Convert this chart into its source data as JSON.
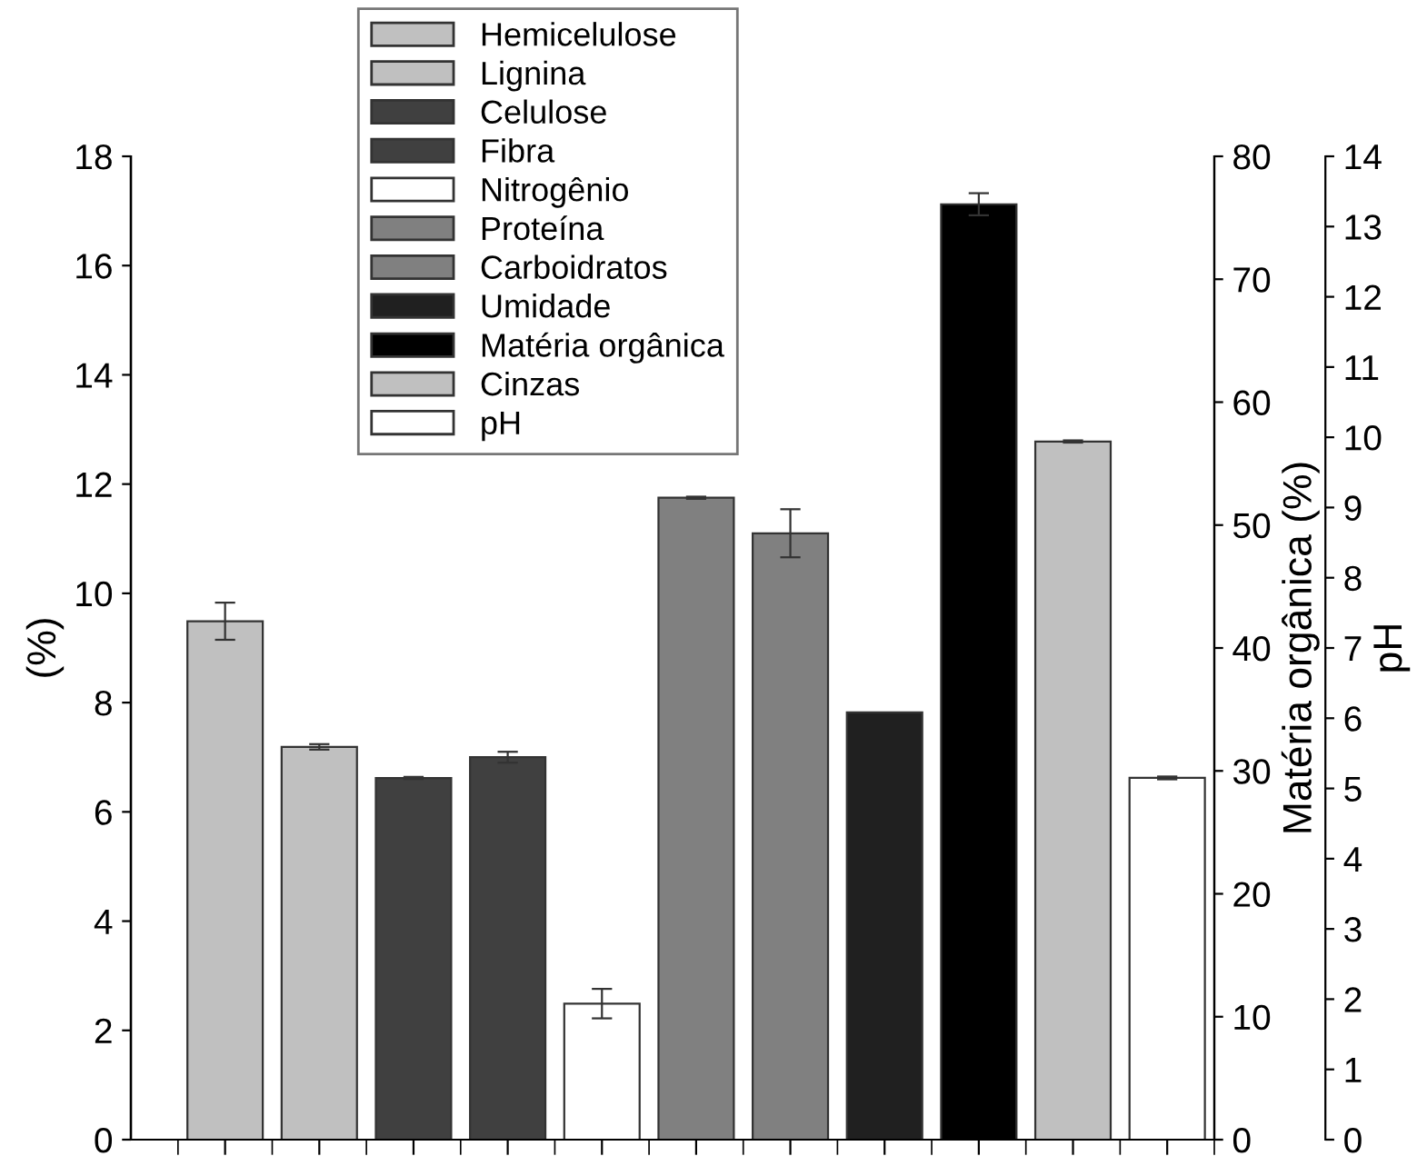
{
  "chart_data": {
    "type": "bar",
    "ylabel": "(%)",
    "y2label": "Matéria orgânica (%)",
    "y3label": "pH",
    "categories": [
      null,
      null,
      null,
      null,
      null,
      null,
      null,
      null,
      null,
      null,
      null
    ],
    "ylim": [
      0,
      18
    ],
    "yticks": [
      0,
      2,
      4,
      6,
      8,
      10,
      12,
      14,
      16,
      18
    ],
    "y2lim": [
      0,
      80
    ],
    "y2ticks": [
      0,
      10,
      20,
      30,
      40,
      50,
      60,
      70,
      80
    ],
    "y3lim": [
      0,
      14
    ],
    "y3ticks": [
      0,
      1,
      2,
      3,
      4,
      5,
      6,
      7,
      8,
      9,
      10,
      11,
      12,
      13,
      14
    ],
    "legend": "top left",
    "grid": false,
    "series": [
      {
        "name": "Hemicelulose",
        "color": "#c0c0c0",
        "values": [
          9.49,
          null,
          null,
          null,
          null,
          null,
          null,
          null,
          null,
          null,
          null
        ],
        "errors": [
          0.34,
          null,
          null,
          null,
          null,
          null,
          null,
          null,
          null,
          null,
          null
        ]
      },
      {
        "name": "Lignina",
        "color": "#c0c0c0",
        "values": [
          null,
          7.19,
          null,
          null,
          null,
          null,
          null,
          null,
          null,
          null,
          null
        ],
        "errors": [
          null,
          0.05,
          null,
          null,
          null,
          null,
          null,
          null,
          null,
          null,
          null
        ]
      },
      {
        "name": "Celulose",
        "color": "#404040",
        "values": [
          null,
          null,
          6.62,
          null,
          null,
          null,
          null,
          null,
          null,
          null,
          null
        ],
        "errors": [
          null,
          null,
          0.02,
          null,
          null,
          null,
          null,
          null,
          null,
          null,
          null
        ]
      },
      {
        "name": "Fibra",
        "color": "#404040",
        "values": [
          null,
          null,
          null,
          7.0,
          null,
          null,
          null,
          null,
          null,
          null,
          null
        ],
        "errors": [
          null,
          null,
          null,
          0.1,
          null,
          null,
          null,
          null,
          null,
          null,
          null
        ]
      },
      {
        "name": "Nitrogênio",
        "color": "#ffffff",
        "values": [
          null,
          null,
          null,
          null,
          2.49,
          null,
          null,
          null,
          null,
          null,
          null
        ],
        "errors": [
          null,
          null,
          null,
          null,
          0.27,
          null,
          null,
          null,
          null,
          null,
          null
        ]
      },
      {
        "name": "Proteína",
        "color": "#808080",
        "values": [
          null,
          null,
          null,
          null,
          null,
          11.75,
          null,
          null,
          null,
          null,
          null
        ],
        "errors": [
          null,
          null,
          null,
          null,
          null,
          0.02,
          null,
          null,
          null,
          null,
          null
        ]
      },
      {
        "name": "Carboidratos",
        "color": "#808080",
        "values": [
          null,
          null,
          null,
          null,
          null,
          null,
          11.1,
          null,
          null,
          null,
          null
        ],
        "errors": [
          null,
          null,
          null,
          null,
          null,
          null,
          0.44,
          null,
          null,
          null,
          null
        ]
      },
      {
        "name": "Umidade",
        "color": "#202020",
        "values": [
          null,
          null,
          null,
          null,
          null,
          null,
          null,
          7.82,
          null,
          null,
          null
        ]
      },
      {
        "name": "Matéria orgânica",
        "color": "#000000",
        "axis": "y2",
        "values": [
          null,
          null,
          null,
          null,
          null,
          null,
          null,
          null,
          76.1,
          null,
          null
        ],
        "errors": [
          null,
          null,
          null,
          null,
          null,
          null,
          null,
          null,
          0.9,
          null,
          null
        ]
      },
      {
        "name": "Cinzas",
        "color": "#c0c0c0",
        "values": [
          null,
          null,
          null,
          null,
          null,
          null,
          null,
          null,
          null,
          12.78,
          null
        ],
        "errors": [
          null,
          null,
          null,
          null,
          null,
          null,
          null,
          null,
          null,
          0.02,
          null
        ]
      },
      {
        "name": "pH",
        "color": "#ffffff",
        "axis": "y3",
        "values": [
          null,
          null,
          null,
          null,
          null,
          null,
          null,
          null,
          null,
          null,
          5.15
        ],
        "errors": [
          null,
          null,
          null,
          null,
          null,
          null,
          null,
          null,
          null,
          null,
          0.02
        ]
      }
    ]
  }
}
